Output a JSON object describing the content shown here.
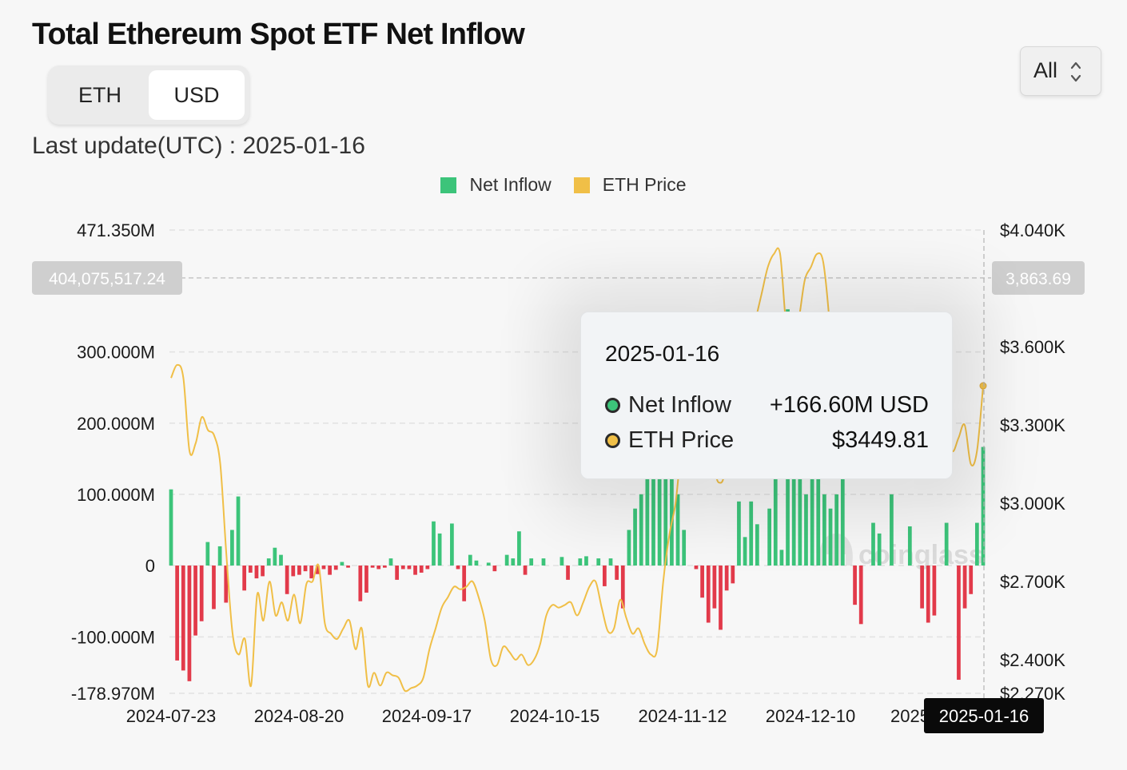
{
  "title": "Total Ethereum Spot ETF Net Inflow",
  "unit_toggle": {
    "options": [
      "ETH",
      "USD"
    ],
    "selected": "USD"
  },
  "last_update": "Last update(UTC) : 2025-01-16",
  "range_select": {
    "value": "All"
  },
  "legend": [
    {
      "label": "Net Inflow",
      "color": "#3cc47a"
    },
    {
      "label": "ETH Price",
      "color": "#f0bf47"
    }
  ],
  "crosshair": {
    "left_value": "404,075,517.24",
    "right_value": "3,863.69",
    "date": "2025-01-16"
  },
  "tooltip": {
    "date": "2025-01-16",
    "rows": [
      {
        "label": "Net Inflow",
        "value": "+166.60M USD",
        "dot_color": "#3cc47a"
      },
      {
        "label": "ETH Price",
        "value": "$3449.81",
        "dot_color": "#f0bf47"
      }
    ]
  },
  "watermark": "coinglass",
  "chart_data": {
    "type": "bar",
    "title": "Total Ethereum Spot ETF Net Inflow",
    "x_tick_labels": [
      "2024-07-23",
      "2024-08-20",
      "2024-09-17",
      "2024-10-15",
      "2024-11-12",
      "2024-12-10",
      "2025-01-16"
    ],
    "y_left": {
      "min": -178.97,
      "max": 471.35,
      "unit": "M USD",
      "tick_labels": [
        "471.350M",
        "300.000M",
        "200.000M",
        "100.000M",
        "0",
        "-100.000M",
        "-178.970M"
      ]
    },
    "y_right": {
      "min": 2.27,
      "max": 4.04,
      "unit": "K USD",
      "tick_labels": [
        "$4.040K",
        "$3.600K",
        "$3.300K",
        "$3.000K",
        "$2.700K",
        "$2.400K",
        "$2.270K"
      ]
    },
    "grid": true,
    "legend_position": "top-center",
    "categories_note": "one bar per trading day, 2024-07-23 to 2025-01-16",
    "series": [
      {
        "name": "Net Inflow",
        "axis": "left",
        "unit": "M USD",
        "positive_color": "#3cc47a",
        "negative_color": "#e23a4a",
        "values": [
          107,
          -133,
          -147,
          -162,
          -98,
          -78,
          33,
          -61,
          27,
          -52,
          50,
          97,
          -35,
          -10,
          -18,
          -15,
          10,
          25,
          15,
          -40,
          -15,
          -13,
          -8,
          -18,
          -12,
          -5,
          -13,
          -6,
          5,
          -3,
          0,
          -50,
          -38,
          -3,
          -5,
          -3,
          10,
          -20,
          -5,
          -5,
          -13,
          -10,
          -5,
          62,
          45,
          0,
          59,
          -5,
          -50,
          15,
          7,
          0,
          4,
          -8,
          0,
          15,
          10,
          48,
          -13,
          10,
          0,
          10,
          0,
          0,
          12,
          -20,
          0,
          10,
          13,
          0,
          10,
          -29,
          10,
          -20,
          -60,
          50,
          80,
          100,
          130,
          300,
          250,
          200,
          150,
          100,
          50,
          0,
          -5,
          -45,
          -80,
          -60,
          -90,
          -35,
          -25,
          90,
          40,
          90,
          58,
          0,
          80,
          150,
          22,
          360,
          270,
          150,
          100,
          130,
          150,
          100,
          80,
          100,
          140,
          0,
          -55,
          -82,
          0,
          60,
          45,
          0,
          100,
          0,
          0,
          55,
          0,
          -60,
          -80,
          -70,
          0,
          60,
          0,
          -160,
          -60,
          -40,
          60,
          166.6
        ]
      },
      {
        "name": "ETH Price",
        "axis": "right",
        "unit": "USD",
        "color": "#f0bf47",
        "values": [
          3480,
          3530,
          3480,
          3200,
          3230,
          3330,
          3280,
          3260,
          3150,
          2800,
          2500,
          2420,
          2480,
          2300,
          2650,
          2550,
          2700,
          2570,
          2620,
          2550,
          2650,
          2540,
          2690,
          2700,
          2760,
          2540,
          2500,
          2480,
          2520,
          2550,
          2440,
          2520,
          2300,
          2350,
          2300,
          2350,
          2340,
          2330,
          2280,
          2290,
          2300,
          2330,
          2440,
          2520,
          2600,
          2640,
          2680,
          2670,
          2680,
          2700,
          2640,
          2550,
          2400,
          2380,
          2450,
          2430,
          2400,
          2420,
          2380,
          2400,
          2460,
          2570,
          2610,
          2600,
          2610,
          2620,
          2570,
          2620,
          2680,
          2700,
          2600,
          2510,
          2520,
          2630,
          2560,
          2500,
          2520,
          2460,
          2420,
          2440,
          2700,
          2880,
          3000,
          3200,
          3150,
          3300,
          3140,
          3100,
          3140,
          3080,
          3120,
          3380,
          3400,
          3380,
          3600,
          3700,
          3800,
          3900,
          3950,
          3950,
          3680,
          3630,
          3700,
          3850,
          3900,
          3950,
          3920,
          3700,
          3350,
          3400,
          3350,
          3300,
          3450,
          3550,
          3500,
          3380,
          3300,
          3450,
          3650,
          3400,
          3300,
          3200,
          3300,
          3250,
          3290,
          3380,
          3300,
          3200,
          3250,
          3300,
          3150,
          3200,
          3449.81
        ]
      }
    ]
  }
}
